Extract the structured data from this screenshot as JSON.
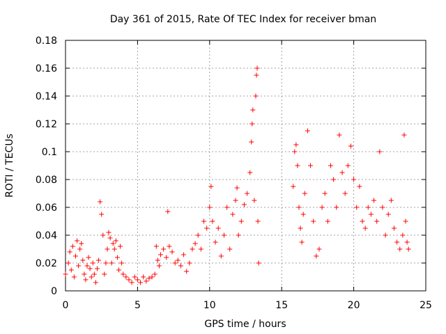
{
  "chart_data": {
    "type": "scatter",
    "title": "Day 361 of 2015, Rate Of TEC Index for receiver bman",
    "xlabel": "GPS time / hours",
    "ylabel": "ROTI / TECUs",
    "xlim": [
      0,
      25
    ],
    "ylim": [
      0,
      0.18
    ],
    "x_ticks": [
      "0",
      "5",
      "10",
      "15",
      "20",
      "25"
    ],
    "y_ticks": [
      "0",
      "0.02",
      "0.04",
      "0.06",
      "0.08",
      "0.1",
      "0.12",
      "0.14",
      "0.16",
      "0.18"
    ],
    "grid": true,
    "marker": "+",
    "color": "#ff0000",
    "series": [
      {
        "points": [
          [
            0.0,
            0.012
          ],
          [
            0.2,
            0.02
          ],
          [
            0.3,
            0.028
          ],
          [
            0.4,
            0.015
          ],
          [
            0.5,
            0.032
          ],
          [
            0.6,
            0.01
          ],
          [
            0.7,
            0.025
          ],
          [
            0.8,
            0.036
          ],
          [
            0.9,
            0.018
          ],
          [
            1.0,
            0.03
          ],
          [
            1.1,
            0.034
          ],
          [
            1.2,
            0.022
          ],
          [
            1.3,
            0.012
          ],
          [
            1.4,
            0.008
          ],
          [
            1.5,
            0.018
          ],
          [
            1.6,
            0.024
          ],
          [
            1.7,
            0.016
          ],
          [
            1.8,
            0.01
          ],
          [
            1.9,
            0.02
          ],
          [
            2.0,
            0.012
          ],
          [
            2.1,
            0.006
          ],
          [
            2.2,
            0.016
          ],
          [
            2.3,
            0.022
          ],
          [
            2.4,
            0.064
          ],
          [
            2.5,
            0.055
          ],
          [
            2.6,
            0.04
          ],
          [
            2.7,
            0.012
          ],
          [
            2.8,
            0.02
          ],
          [
            2.9,
            0.03
          ],
          [
            3.0,
            0.042
          ],
          [
            3.1,
            0.038
          ],
          [
            3.2,
            0.02
          ],
          [
            3.3,
            0.034
          ],
          [
            3.4,
            0.03
          ],
          [
            3.5,
            0.036
          ],
          [
            3.6,
            0.024
          ],
          [
            3.7,
            0.015
          ],
          [
            3.8,
            0.032
          ],
          [
            3.9,
            0.02
          ],
          [
            4.0,
            0.012
          ],
          [
            4.2,
            0.01
          ],
          [
            4.4,
            0.008
          ],
          [
            4.6,
            0.006
          ],
          [
            4.8,
            0.01
          ],
          [
            5.0,
            0.008
          ],
          [
            5.2,
            0.006
          ],
          [
            5.4,
            0.01
          ],
          [
            5.6,
            0.007
          ],
          [
            5.8,
            0.009
          ],
          [
            6.0,
            0.01
          ],
          [
            6.2,
            0.012
          ],
          [
            6.3,
            0.032
          ],
          [
            6.4,
            0.022
          ],
          [
            6.5,
            0.018
          ],
          [
            6.6,
            0.026
          ],
          [
            6.8,
            0.03
          ],
          [
            7.0,
            0.024
          ],
          [
            7.1,
            0.057
          ],
          [
            7.2,
            0.032
          ],
          [
            7.4,
            0.028
          ],
          [
            7.6,
            0.02
          ],
          [
            7.8,
            0.022
          ],
          [
            8.0,
            0.018
          ],
          [
            8.2,
            0.026
          ],
          [
            8.4,
            0.014
          ],
          [
            8.6,
            0.02
          ],
          [
            8.8,
            0.03
          ],
          [
            9.0,
            0.034
          ],
          [
            9.2,
            0.04
          ],
          [
            9.4,
            0.03
          ],
          [
            9.6,
            0.05
          ],
          [
            9.8,
            0.045
          ],
          [
            10.0,
            0.06
          ],
          [
            10.1,
            0.075
          ],
          [
            10.2,
            0.05
          ],
          [
            10.4,
            0.035
          ],
          [
            10.6,
            0.045
          ],
          [
            10.8,
            0.025
          ],
          [
            11.0,
            0.04
          ],
          [
            11.2,
            0.06
          ],
          [
            11.4,
            0.03
          ],
          [
            11.6,
            0.055
          ],
          [
            11.8,
            0.065
          ],
          [
            11.9,
            0.074
          ],
          [
            12.0,
            0.04
          ],
          [
            12.2,
            0.05
          ],
          [
            12.4,
            0.062
          ],
          [
            12.6,
            0.07
          ],
          [
            12.8,
            0.085
          ],
          [
            12.9,
            0.107
          ],
          [
            12.95,
            0.12
          ],
          [
            13.0,
            0.13
          ],
          [
            13.1,
            0.065
          ],
          [
            13.2,
            0.14
          ],
          [
            13.25,
            0.155
          ],
          [
            13.3,
            0.16
          ],
          [
            13.35,
            0.05
          ],
          [
            13.4,
            0.02
          ],
          [
            15.8,
            0.075
          ],
          [
            15.9,
            0.1
          ],
          [
            16.0,
            0.105
          ],
          [
            16.1,
            0.09
          ],
          [
            16.2,
            0.06
          ],
          [
            16.3,
            0.045
          ],
          [
            16.4,
            0.035
          ],
          [
            16.5,
            0.055
          ],
          [
            16.6,
            0.07
          ],
          [
            16.8,
            0.115
          ],
          [
            17.0,
            0.09
          ],
          [
            17.2,
            0.05
          ],
          [
            17.4,
            0.025
          ],
          [
            17.6,
            0.03
          ],
          [
            17.8,
            0.06
          ],
          [
            18.0,
            0.07
          ],
          [
            18.2,
            0.05
          ],
          [
            18.4,
            0.09
          ],
          [
            18.6,
            0.08
          ],
          [
            18.8,
            0.06
          ],
          [
            19.0,
            0.112
          ],
          [
            19.2,
            0.085
          ],
          [
            19.4,
            0.07
          ],
          [
            19.6,
            0.09
          ],
          [
            19.8,
            0.104
          ],
          [
            20.0,
            0.08
          ],
          [
            20.2,
            0.06
          ],
          [
            20.4,
            0.075
          ],
          [
            20.6,
            0.05
          ],
          [
            20.8,
            0.045
          ],
          [
            21.0,
            0.06
          ],
          [
            21.2,
            0.055
          ],
          [
            21.4,
            0.065
          ],
          [
            21.6,
            0.05
          ],
          [
            21.8,
            0.1
          ],
          [
            22.0,
            0.06
          ],
          [
            22.2,
            0.04
          ],
          [
            22.4,
            0.055
          ],
          [
            22.6,
            0.065
          ],
          [
            22.8,
            0.045
          ],
          [
            23.0,
            0.035
          ],
          [
            23.2,
            0.03
          ],
          [
            23.4,
            0.04
          ],
          [
            23.5,
            0.112
          ],
          [
            23.6,
            0.05
          ],
          [
            23.7,
            0.035
          ],
          [
            23.8,
            0.03
          ]
        ]
      }
    ]
  }
}
